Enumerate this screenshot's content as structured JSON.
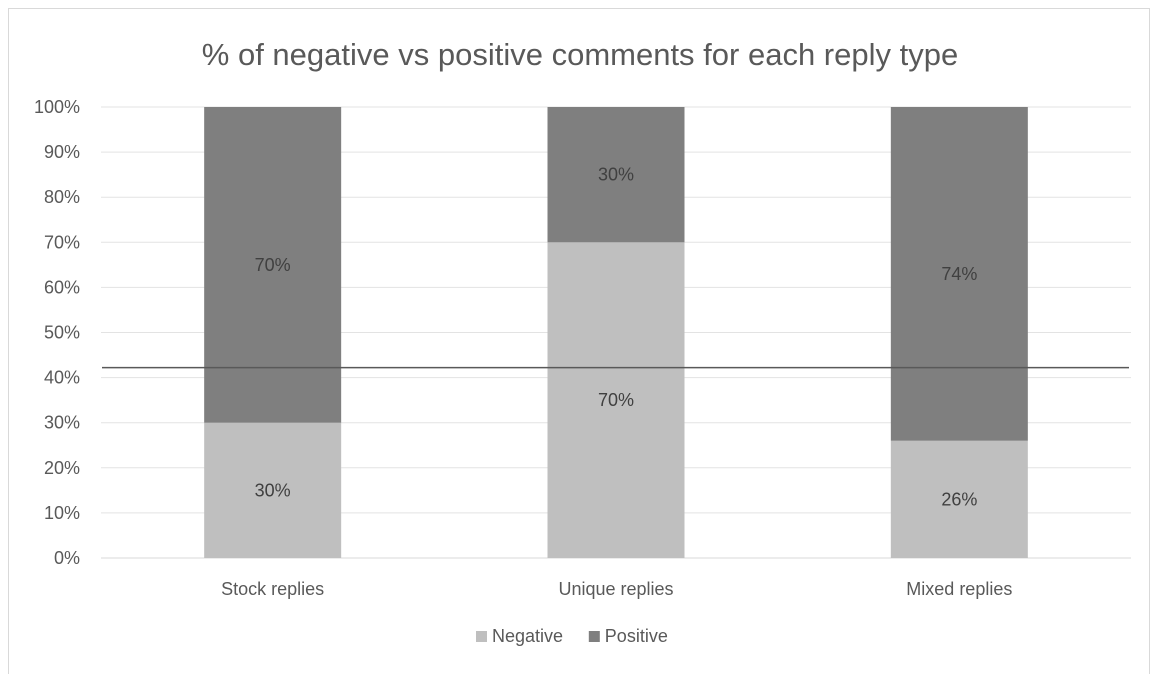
{
  "chart_data": {
    "type": "bar",
    "stacked": "percent",
    "title": "% of negative vs positive comments for each reply type",
    "xlabel": "",
    "ylabel": "",
    "categories": [
      "Stock replies",
      "Unique replies",
      "Mixed replies"
    ],
    "series": [
      {
        "name": "Negative",
        "values": [
          30,
          70,
          26
        ],
        "labels": [
          "30%",
          "70%",
          "26%"
        ],
        "color": "#bfbfbf"
      },
      {
        "name": "Positive",
        "values": [
          70,
          30,
          74
        ],
        "labels": [
          "70%",
          "30%",
          "74%"
        ],
        "color": "#7f7f7f"
      }
    ],
    "ylim": [
      0,
      100
    ],
    "yticks": [
      "0%",
      "10%",
      "20%",
      "30%",
      "40%",
      "50%",
      "60%",
      "70%",
      "80%",
      "90%",
      "100%"
    ],
    "reference_line": 42.2,
    "reference_line_color": "#595959",
    "grid": true,
    "legend_position": "bottom"
  }
}
